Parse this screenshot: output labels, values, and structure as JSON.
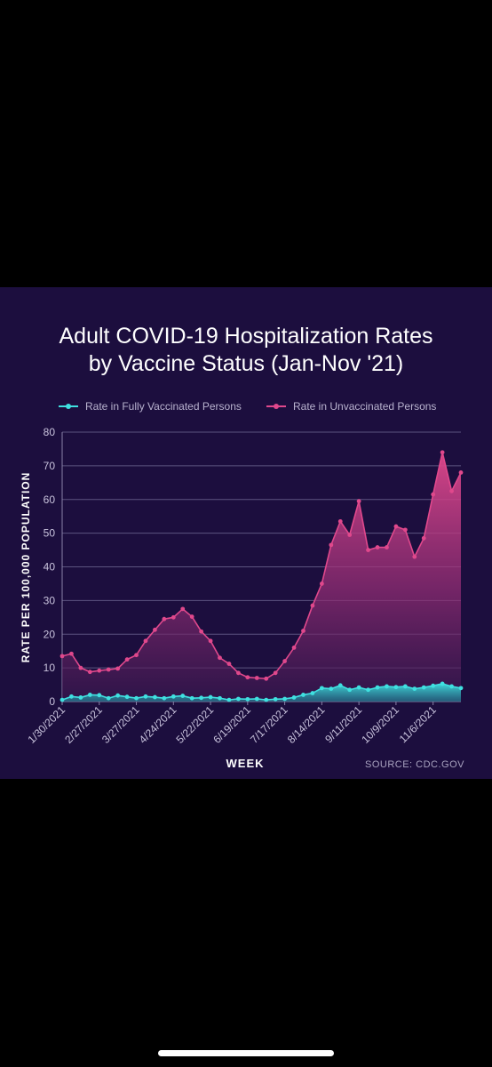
{
  "chart_data": {
    "type": "area",
    "title_lines": [
      "Adult COVID-19 Hospitalization Rates",
      "by Vaccine Status (Jan-Nov '21)"
    ],
    "ylabel": "RATE PER 100,000 POPULATION",
    "xlabel": "WEEK",
    "source": "SOURCE: CDC.GOV",
    "ylim": [
      0,
      80
    ],
    "yticks": [
      0,
      10,
      20,
      30,
      40,
      50,
      60,
      70,
      80
    ],
    "x_tick_labels": [
      {
        "index": 0,
        "label": "1/30/2021"
      },
      {
        "index": 4,
        "label": "2/27/2021"
      },
      {
        "index": 8,
        "label": "3/27/2021"
      },
      {
        "index": 12,
        "label": "4/24/2021"
      },
      {
        "index": 16,
        "label": "5/22/2021"
      },
      {
        "index": 20,
        "label": "6/19/2021"
      },
      {
        "index": 24,
        "label": "7/17/2021"
      },
      {
        "index": 28,
        "label": "8/14/2021"
      },
      {
        "index": 32,
        "label": "9/11/2021"
      },
      {
        "index": 36,
        "label": "10/9/2021"
      },
      {
        "index": 40,
        "label": "11/6/2021"
      }
    ],
    "legend_position": "top",
    "grid": true,
    "series": [
      {
        "name": "Rate in Fully Vaccinated Persons",
        "color": "#3fe0e0",
        "values": [
          0.5,
          1.5,
          1.2,
          2.0,
          1.9,
          1.0,
          1.8,
          1.4,
          1.0,
          1.5,
          1.3,
          1.0,
          1.5,
          1.7,
          1.0,
          1.1,
          1.3,
          1.0,
          0.5,
          0.8,
          0.7,
          0.8,
          0.5,
          0.7,
          0.8,
          1.2,
          2.0,
          2.5,
          4.0,
          3.8,
          4.8,
          3.5,
          4.2,
          3.5,
          4.2,
          4.5,
          4.3,
          4.5,
          3.8,
          4.2,
          4.7,
          5.3,
          4.5,
          4.0
        ]
      },
      {
        "name": "Rate in Unvaccinated Persons",
        "color": "#e0488c",
        "values": [
          13.5,
          14.2,
          10.0,
          8.8,
          9.2,
          9.5,
          9.8,
          12.5,
          13.8,
          18.0,
          21.3,
          24.5,
          25.0,
          27.5,
          25.2,
          20.8,
          18.0,
          13.0,
          11.2,
          8.5,
          7.2,
          7.0,
          6.8,
          8.5,
          12.0,
          16.0,
          21.0,
          28.5,
          35.0,
          46.5,
          53.5,
          49.5,
          59.5,
          45.0,
          45.8,
          45.8,
          52.0,
          51.0,
          43.0,
          48.5,
          61.5,
          74.0,
          62.5,
          68.0
        ]
      }
    ]
  }
}
